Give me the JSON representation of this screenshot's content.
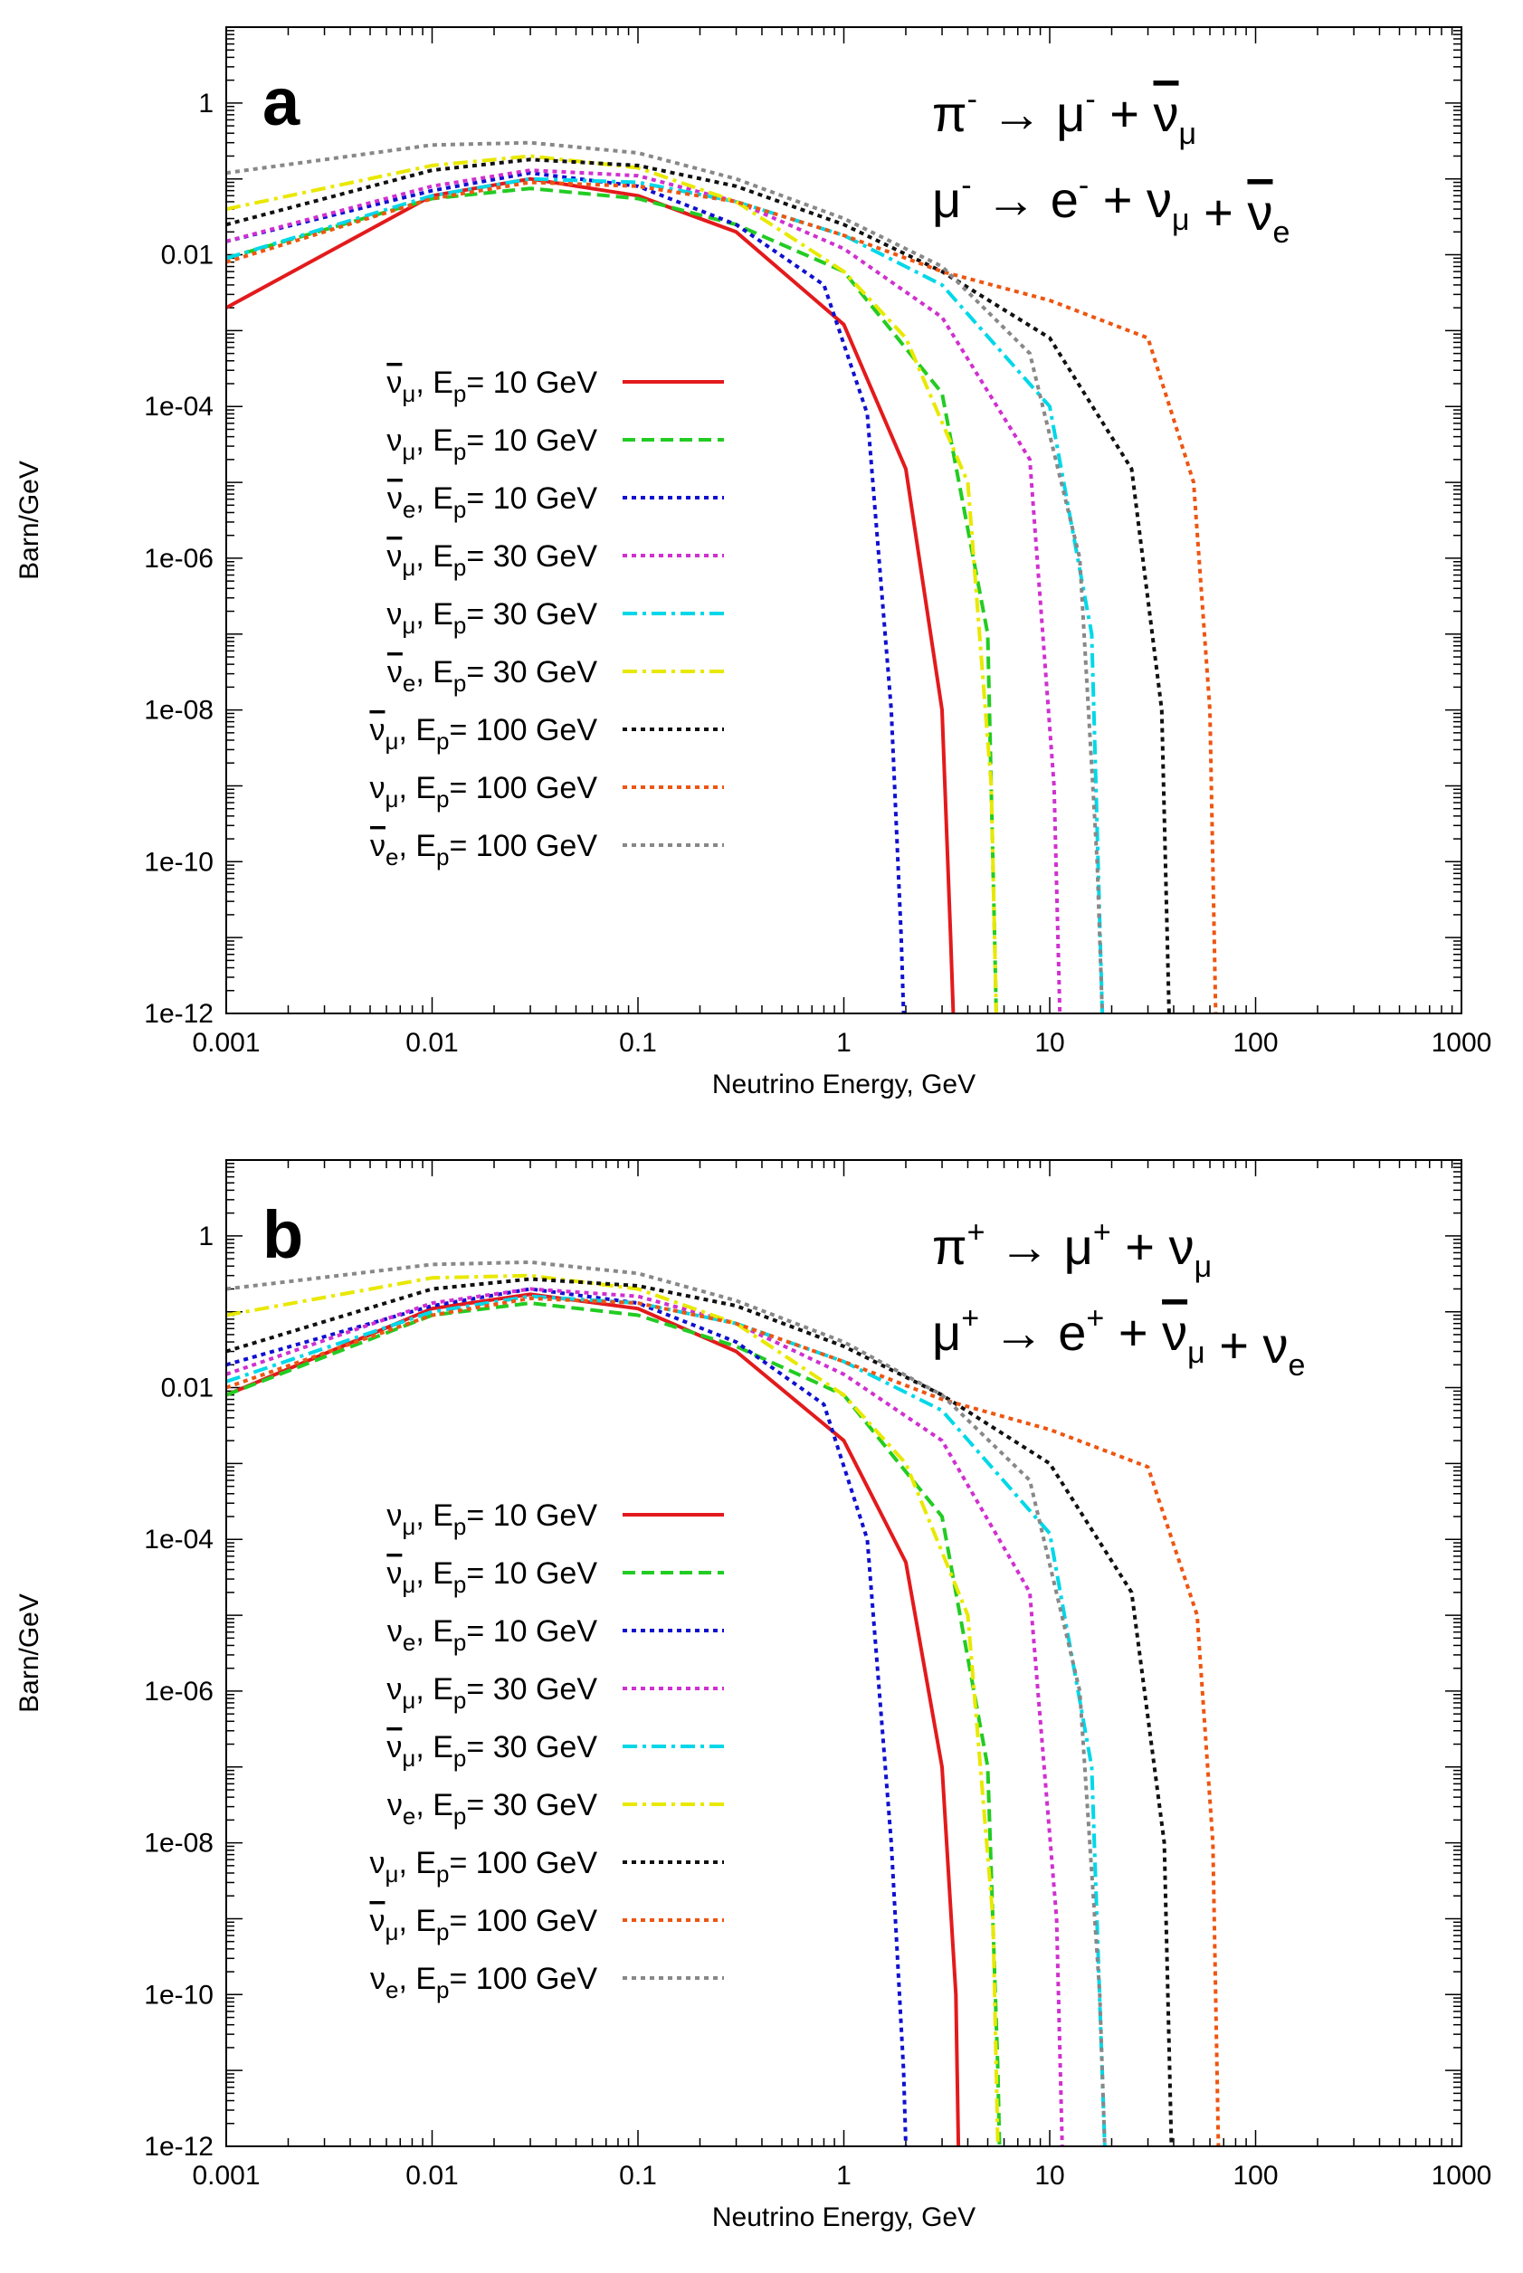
{
  "chart_data": [
    {
      "type": "line",
      "panel_label": "a",
      "reactions": [
        {
          "lhs": "π",
          "lhs_sup": "-",
          "prod1": "μ",
          "prod1_sup": "-",
          "plus_terms": [
            {
              "sym": "ν",
              "bar": true,
              "sub": "μ"
            }
          ]
        },
        {
          "lhs": "μ",
          "lhs_sup": "-",
          "prod1": "e",
          "prod1_sup": "-",
          "plus_terms": [
            {
              "sym": "ν",
              "bar": false,
              "sub": "μ"
            },
            {
              "sym": "ν",
              "bar": true,
              "sub": "e"
            }
          ]
        }
      ],
      "xlabel": "Neutrino Energy, GeV",
      "ylabel": "Barn/GeV",
      "xscale": "log",
      "yscale": "log",
      "xlim": [
        0.001,
        1000
      ],
      "ylim": [
        1e-12,
        10
      ],
      "xticks": [
        0.001,
        0.01,
        0.1,
        1,
        10,
        100,
        1000
      ],
      "xtick_labels": [
        "0.001",
        "0.01",
        "0.1",
        "1",
        "10",
        "100",
        "1000"
      ],
      "yticks": [
        1e-12,
        1e-10,
        1e-08,
        1e-06,
        0.0001,
        0.01,
        1
      ],
      "ytick_labels": [
        "1e-12",
        "1e-10",
        "1e-08",
        "1e-06",
        "1e-04",
        "0.01",
        "1"
      ],
      "legend_position": "left",
      "series": [
        {
          "sym": "ν",
          "bar": true,
          "sub": "μ",
          "label_text": "E",
          "label_sub": "p",
          "label_rest": "= 10 GeV",
          "color": "#e31a1c",
          "dash": "solid",
          "x": [
            0.001,
            0.01,
            0.03,
            0.1,
            0.3,
            1,
            2,
            3,
            3.3,
            3.4
          ],
          "y": [
            0.002,
            0.06,
            0.1,
            0.06,
            0.02,
            0.0012,
            1.5e-05,
            1e-08,
            1e-11,
            1e-12
          ]
        },
        {
          "sym": "ν",
          "bar": false,
          "sub": "μ",
          "label_text": "E",
          "label_sub": "p",
          "label_rest": "= 10 GeV",
          "color": "#22cc22",
          "dash": "dashed",
          "x": [
            0.001,
            0.01,
            0.03,
            0.1,
            0.3,
            1,
            3,
            5,
            5.4,
            5.5
          ],
          "y": [
            0.009,
            0.055,
            0.075,
            0.055,
            0.025,
            0.006,
            0.00015,
            1e-07,
            1e-11,
            1e-12
          ]
        },
        {
          "sym": "ν",
          "bar": true,
          "sub": "e",
          "label_text": "E",
          "label_sub": "p",
          "label_rest": "= 10 GeV",
          "color": "#1010d0",
          "dash": "dotted",
          "x": [
            0.001,
            0.01,
            0.03,
            0.1,
            0.3,
            0.8,
            1.3,
            1.7,
            1.9,
            1.95
          ],
          "y": [
            0.015,
            0.07,
            0.12,
            0.08,
            0.025,
            0.004,
            8e-05,
            1e-08,
            1e-11,
            1e-12
          ]
        },
        {
          "sym": "ν",
          "bar": true,
          "sub": "μ",
          "label_text": "E",
          "label_sub": "p",
          "label_rest": "= 30 GeV",
          "color": "#d030d0",
          "dash": "dotted",
          "x": [
            0.001,
            0.01,
            0.03,
            0.1,
            0.3,
            1,
            3,
            8,
            10.5,
            11.2
          ],
          "y": [
            0.015,
            0.08,
            0.13,
            0.11,
            0.05,
            0.012,
            0.0015,
            2e-05,
            1e-09,
            1e-12
          ]
        },
        {
          "sym": "ν",
          "bar": false,
          "sub": "μ",
          "label_text": "E",
          "label_sub": "p",
          "label_rest": "= 30 GeV",
          "color": "#00d8e8",
          "dash": "dashdot",
          "x": [
            0.001,
            0.01,
            0.03,
            0.1,
            0.3,
            1,
            3,
            10,
            16,
            18
          ],
          "y": [
            0.009,
            0.06,
            0.1,
            0.09,
            0.05,
            0.018,
            0.004,
            0.0001,
            1e-07,
            1e-12
          ]
        },
        {
          "sym": "ν",
          "bar": true,
          "sub": "e",
          "label_text": "E",
          "label_sub": "p",
          "label_rest": "= 30 GeV",
          "color": "#e8e800",
          "dash": "dashdot",
          "x": [
            0.001,
            0.01,
            0.03,
            0.1,
            0.3,
            1,
            2,
            4,
            5.2,
            5.5
          ],
          "y": [
            0.04,
            0.15,
            0.2,
            0.14,
            0.05,
            0.006,
            0.0008,
            1e-05,
            1e-09,
            1e-12
          ]
        },
        {
          "sym": "ν",
          "bar": true,
          "sub": "μ",
          "label_text": "E",
          "label_sub": "p",
          "label_rest": "= 100 GeV",
          "color": "#111111",
          "dash": "dotted",
          "x": [
            0.001,
            0.01,
            0.03,
            0.1,
            0.3,
            1,
            3,
            10,
            25,
            35,
            38
          ],
          "y": [
            0.025,
            0.13,
            0.18,
            0.15,
            0.08,
            0.025,
            0.006,
            0.0008,
            1.5e-05,
            1e-08,
            1e-12
          ]
        },
        {
          "sym": "ν",
          "bar": false,
          "sub": "μ",
          "label_text": "E",
          "label_sub": "p",
          "label_rest": "= 100 GeV",
          "color": "#ee5511",
          "dash": "dotted",
          "x": [
            0.001,
            0.01,
            0.03,
            0.1,
            0.3,
            1,
            3,
            10,
            30,
            50,
            60,
            64
          ],
          "y": [
            0.008,
            0.055,
            0.09,
            0.08,
            0.05,
            0.018,
            0.006,
            0.0025,
            0.0008,
            1e-05,
            1e-08,
            1e-12
          ]
        },
        {
          "sym": "ν",
          "bar": true,
          "sub": "e",
          "label_text": "E",
          "label_sub": "p",
          "label_rest": "= 100 GeV",
          "color": "#888888",
          "dash": "dotted",
          "x": [
            0.001,
            0.01,
            0.03,
            0.1,
            0.3,
            1,
            3,
            8,
            14,
            17,
            18
          ],
          "y": [
            0.12,
            0.28,
            0.3,
            0.22,
            0.1,
            0.03,
            0.007,
            0.0005,
            1e-06,
            1e-10,
            1e-12
          ]
        }
      ]
    },
    {
      "type": "line",
      "panel_label": "b",
      "reactions": [
        {
          "lhs": "π",
          "lhs_sup": "+",
          "prod1": "μ",
          "prod1_sup": "+",
          "plus_terms": [
            {
              "sym": "ν",
              "bar": false,
              "sub": "μ"
            }
          ]
        },
        {
          "lhs": "μ",
          "lhs_sup": "+",
          "prod1": "e",
          "prod1_sup": "+",
          "plus_terms": [
            {
              "sym": "ν",
              "bar": true,
              "sub": "μ"
            },
            {
              "sym": "ν",
              "bar": false,
              "sub": "e"
            }
          ]
        }
      ],
      "xlabel": "Neutrino Energy, GeV",
      "ylabel": "Barn/GeV",
      "xscale": "log",
      "yscale": "log",
      "xlim": [
        0.001,
        1000
      ],
      "ylim": [
        1e-12,
        10
      ],
      "xticks": [
        0.001,
        0.01,
        0.1,
        1,
        10,
        100,
        1000
      ],
      "xtick_labels": [
        "0.001",
        "0.01",
        "0.1",
        "1",
        "10",
        "100",
        "1000"
      ],
      "yticks": [
        1e-12,
        1e-10,
        1e-08,
        1e-06,
        0.0001,
        0.01,
        1
      ],
      "ytick_labels": [
        "1e-12",
        "1e-10",
        "1e-08",
        "1e-06",
        "1e-04",
        "0.01",
        "1"
      ],
      "legend_position": "left",
      "series": [
        {
          "sym": "ν",
          "bar": false,
          "sub": "μ",
          "label_text": "E",
          "label_sub": "p",
          "label_rest": "= 10 GeV",
          "color": "#e31a1c",
          "dash": "solid",
          "x": [
            0.001,
            0.01,
            0.03,
            0.1,
            0.3,
            1,
            2,
            3,
            3.5,
            3.6
          ],
          "y": [
            0.008,
            0.11,
            0.17,
            0.11,
            0.03,
            0.002,
            5e-05,
            1e-07,
            1e-10,
            1e-12
          ]
        },
        {
          "sym": "ν",
          "bar": true,
          "sub": "μ",
          "label_text": "E",
          "label_sub": "p",
          "label_rest": "= 10 GeV",
          "color": "#22cc22",
          "dash": "dashed",
          "x": [
            0.001,
            0.01,
            0.03,
            0.1,
            0.3,
            1,
            3,
            5,
            5.6,
            5.7
          ],
          "y": [
            0.008,
            0.09,
            0.13,
            0.09,
            0.035,
            0.008,
            0.0002,
            1e-07,
            1e-11,
            1e-12
          ]
        },
        {
          "sym": "ν",
          "bar": false,
          "sub": "e",
          "label_text": "E",
          "label_sub": "p",
          "label_rest": "= 10 GeV",
          "color": "#1010d0",
          "dash": "dotted",
          "x": [
            0.001,
            0.01,
            0.03,
            0.1,
            0.3,
            0.8,
            1.3,
            1.7,
            1.95,
            2.0
          ],
          "y": [
            0.02,
            0.12,
            0.2,
            0.13,
            0.04,
            0.006,
            0.0001,
            1e-08,
            1e-11,
            1e-12
          ]
        },
        {
          "sym": "ν",
          "bar": false,
          "sub": "μ",
          "label_text": "E",
          "label_sub": "p",
          "label_rest": "= 30 GeV",
          "color": "#d030d0",
          "dash": "dotted",
          "x": [
            0.001,
            0.01,
            0.03,
            0.1,
            0.3,
            1,
            3,
            8,
            10.8,
            11.5
          ],
          "y": [
            0.015,
            0.13,
            0.2,
            0.16,
            0.07,
            0.015,
            0.002,
            2e-05,
            1e-09,
            1e-12
          ]
        },
        {
          "sym": "ν",
          "bar": true,
          "sub": "μ",
          "label_text": "E",
          "label_sub": "p",
          "label_rest": "= 30 GeV",
          "color": "#00d8e8",
          "dash": "dashdot",
          "x": [
            0.001,
            0.01,
            0.03,
            0.1,
            0.3,
            1,
            3,
            10,
            16,
            18.5
          ],
          "y": [
            0.012,
            0.1,
            0.16,
            0.13,
            0.07,
            0.022,
            0.005,
            0.00012,
            1e-07,
            1e-12
          ]
        },
        {
          "sym": "ν",
          "bar": false,
          "sub": "e",
          "label_text": "E",
          "label_sub": "p",
          "label_rest": "= 30 GeV",
          "color": "#e8e800",
          "dash": "dashdot",
          "x": [
            0.001,
            0.01,
            0.03,
            0.1,
            0.3,
            1,
            2,
            4,
            5.3,
            5.6
          ],
          "y": [
            0.09,
            0.28,
            0.3,
            0.2,
            0.07,
            0.008,
            0.001,
            1e-05,
            1e-09,
            1e-12
          ]
        },
        {
          "sym": "ν",
          "bar": false,
          "sub": "μ",
          "label_text": "E",
          "label_sub": "p",
          "label_rest": "= 100 GeV",
          "color": "#111111",
          "dash": "dotted",
          "x": [
            0.001,
            0.01,
            0.03,
            0.1,
            0.3,
            1,
            3,
            10,
            25,
            36,
            39
          ],
          "y": [
            0.03,
            0.2,
            0.27,
            0.22,
            0.12,
            0.035,
            0.008,
            0.001,
            2e-05,
            1e-08,
            1e-12
          ]
        },
        {
          "sym": "ν",
          "bar": true,
          "sub": "μ",
          "label_text": "E",
          "label_sub": "p",
          "label_rest": "= 100 GeV",
          "color": "#ee5511",
          "dash": "dotted",
          "x": [
            0.001,
            0.01,
            0.03,
            0.1,
            0.3,
            1,
            3,
            10,
            30,
            52,
            62,
            66
          ],
          "y": [
            0.01,
            0.09,
            0.15,
            0.13,
            0.07,
            0.022,
            0.007,
            0.0028,
            0.0009,
            1e-05,
            1e-08,
            1e-12
          ]
        },
        {
          "sym": "ν",
          "bar": false,
          "sub": "e",
          "label_text": "E",
          "label_sub": "p",
          "label_rest": "= 100 GeV",
          "color": "#888888",
          "dash": "dotted",
          "x": [
            0.001,
            0.01,
            0.03,
            0.1,
            0.3,
            1,
            3,
            8,
            14,
            17.5,
            18.5
          ],
          "y": [
            0.2,
            0.42,
            0.45,
            0.32,
            0.14,
            0.04,
            0.008,
            0.0006,
            1e-06,
            1e-10,
            1e-12
          ]
        }
      ]
    }
  ]
}
